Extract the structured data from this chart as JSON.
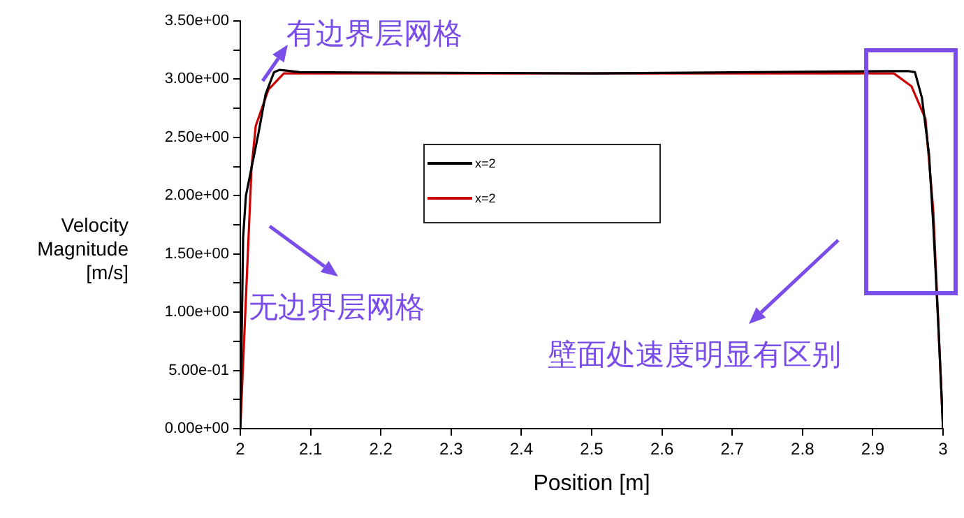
{
  "chart_data": {
    "type": "line",
    "xlabel": "Position [m]",
    "ylabel": "Velocity Magnitude [m/s]",
    "xlim": [
      2,
      3
    ],
    "xticks": [
      2,
      2.1,
      2.2,
      2.3,
      2.4,
      2.5,
      2.6,
      2.7,
      2.8,
      2.9,
      3
    ],
    "ylim": [
      0,
      3.5
    ],
    "yticks": [
      {
        "value": 0,
        "label": "0.00e+00"
      },
      {
        "value": 0.25,
        "label": null
      },
      {
        "value": 0.5,
        "label": "5.00e-01"
      },
      {
        "value": 0.75,
        "label": null
      },
      {
        "value": 1,
        "label": "1.00e+00"
      },
      {
        "value": 1.25,
        "label": null
      },
      {
        "value": 1.5,
        "label": "1.50e+00"
      },
      {
        "value": 1.75,
        "label": null
      },
      {
        "value": 2,
        "label": "2.00e+00"
      },
      {
        "value": 2.25,
        "label": null
      },
      {
        "value": 2.5,
        "label": "2.50e+00"
      },
      {
        "value": 2.75,
        "label": null
      },
      {
        "value": 3,
        "label": "3.00e+00"
      },
      {
        "value": 3.25,
        "label": null
      },
      {
        "value": 3.5,
        "label": "3.50e+00"
      }
    ],
    "grid": false,
    "legend": "top",
    "marker": "none",
    "line_style": "solid",
    "series": [
      {
        "name": "x=2",
        "color": "#000000",
        "x": [
          2,
          2.004,
          2.008,
          2.026,
          2.036,
          2.048,
          2.056,
          2.085,
          2.5,
          2.95,
          2.96,
          2.97,
          2.98,
          2.986,
          2.994,
          3
        ],
        "values": [
          0,
          1.64,
          2,
          2.54,
          2.87,
          3.06,
          3.08,
          3.06,
          3.05,
          3.07,
          3.06,
          2.84,
          2.36,
          1.76,
          0.8,
          0
        ]
      },
      {
        "name": "x=2",
        "color": "#cc0000",
        "x": [
          2,
          2.016,
          2.022,
          2.04,
          2.062,
          2.1,
          2.5,
          2.93,
          2.955,
          2.975,
          2.986,
          3
        ],
        "values": [
          0,
          2.24,
          2.6,
          2.91,
          3.05,
          3.05,
          3.05,
          3.05,
          2.94,
          2.66,
          1.88,
          0
        ]
      }
    ],
    "annotations": [
      "有边界层网格",
      "无边界层网格",
      "壁面处速度明显有区别"
    ]
  }
}
